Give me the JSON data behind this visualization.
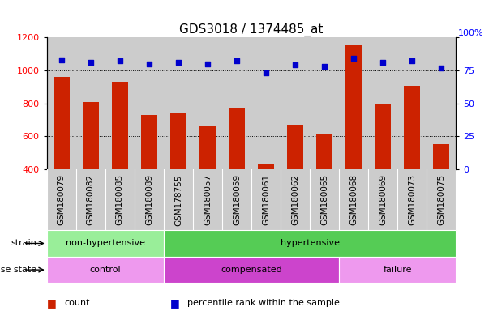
{
  "title": "GDS3018 / 1374485_at",
  "categories": [
    "GSM180079",
    "GSM180082",
    "GSM180085",
    "GSM180089",
    "GSM178755",
    "GSM180057",
    "GSM180059",
    "GSM180061",
    "GSM180062",
    "GSM180065",
    "GSM180068",
    "GSM180069",
    "GSM180073",
    "GSM180075"
  ],
  "bar_values": [
    960,
    810,
    930,
    730,
    745,
    665,
    775,
    435,
    670,
    615,
    1150,
    800,
    905,
    555
  ],
  "percentile_values": [
    83,
    81,
    82,
    80,
    81,
    80,
    82,
    73,
    79,
    78,
    84,
    81,
    82,
    77
  ],
  "bar_color": "#cc2200",
  "dot_color": "#0000cc",
  "ylim_left": [
    400,
    1200
  ],
  "ylim_right": [
    0,
    100
  ],
  "yticks_left": [
    400,
    600,
    800,
    1000,
    1200
  ],
  "yticks_right": [
    0,
    25,
    50,
    75,
    100
  ],
  "grid_values": [
    600,
    800,
    1000
  ],
  "strain_labels": [
    {
      "text": "non-hypertensive",
      "start": 0,
      "end": 4,
      "color": "#99ee99"
    },
    {
      "text": "hypertensive",
      "start": 4,
      "end": 14,
      "color": "#55cc55"
    }
  ],
  "disease_labels": [
    {
      "text": "control",
      "start": 0,
      "end": 4,
      "color": "#ee99ee"
    },
    {
      "text": "compensated",
      "start": 4,
      "end": 10,
      "color": "#cc44cc"
    },
    {
      "text": "failure",
      "start": 10,
      "end": 14,
      "color": "#ee99ee"
    }
  ],
  "legend_items": [
    {
      "label": "count",
      "color": "#cc2200"
    },
    {
      "label": "percentile rank within the sample",
      "color": "#0000cc"
    }
  ],
  "background_color": "#ffffff",
  "bar_bg_color": "#cccccc",
  "title_fontsize": 11,
  "tick_fontsize": 8,
  "label_fontsize": 8,
  "annot_fontsize": 8
}
